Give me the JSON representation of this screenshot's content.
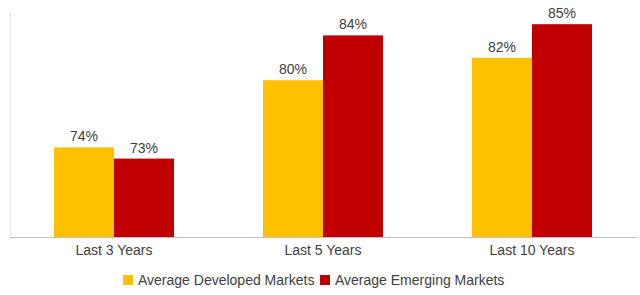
{
  "chart_data": {
    "type": "bar",
    "categories": [
      "Last 3 Years",
      "Last 5 Years",
      "Last 10 Years"
    ],
    "series": [
      {
        "name": "Average Developed Markets",
        "color": "#ffc000",
        "values": [
          74,
          80,
          82
        ],
        "value_labels": [
          "74%",
          "80%",
          "82%"
        ]
      },
      {
        "name": "Average Emerging Markets",
        "color": "#c00000",
        "values": [
          73,
          84,
          85
        ],
        "value_labels": [
          "73%",
          "84%",
          "85%"
        ]
      }
    ],
    "ylim": [
      66,
      86
    ],
    "yticks": [],
    "grid": false,
    "legend": "bottom",
    "data_labels": true,
    "tick_labels": "x"
  }
}
